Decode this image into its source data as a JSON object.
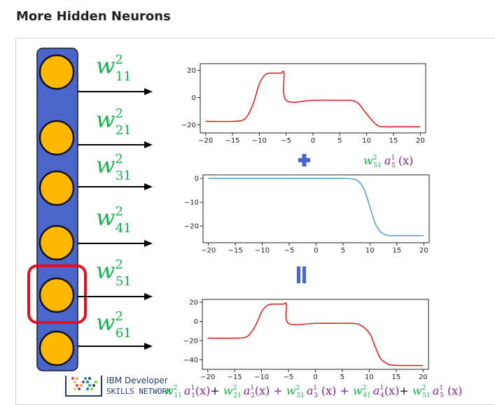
{
  "page_title": "More Hidden Neurons",
  "weights": [
    {
      "sub": "11",
      "sup": "2"
    },
    {
      "sub": "21",
      "sup": "2"
    },
    {
      "sub": "31",
      "sup": "2"
    },
    {
      "sub": "41",
      "sup": "2"
    },
    {
      "sub": "51",
      "sup": "2"
    },
    {
      "sub": "61",
      "sup": "2"
    }
  ],
  "highlighted_neuron": 5,
  "colors": {
    "layer": "#4a66c9",
    "neuron": "#ffb800",
    "highlight": "#e0101a",
    "weight": "#14b04c",
    "activation": "#7b2a8c",
    "red_curve": "#d62728",
    "blue_curve": "#5b9fc9",
    "op": "#4a66c9"
  },
  "operators": {
    "plus": "+",
    "equals": "="
  },
  "term_label": "w²₅₁ a¹₅ (x)",
  "formula": "w²₁₁ a¹₁(x)+ w²₂₁ a¹₂(x) + w²₃₁ a¹₃ (x) + w²₄₁ a¹₄(x)+ w²₅₁ a¹₅ (x)",
  "brand": {
    "line1": "IBM Developer",
    "line2": "SKILLS NETWORK"
  },
  "chart_data": [
    {
      "type": "line",
      "x_ticks": [
        "−20",
        "−15",
        "−10",
        "−5",
        "0",
        "5",
        "10",
        "15",
        "20"
      ],
      "y_ticks": [
        "20",
        "0",
        "−20"
      ],
      "xlim": [
        -21,
        21
      ],
      "ylim": [
        -26,
        25
      ],
      "series": [
        {
          "color": "#d62728",
          "x": [
            -20,
            -15,
            -13,
            -12,
            -11,
            -10,
            -9,
            -8,
            -6,
            -5.4,
            -5,
            0,
            5,
            8,
            10,
            12,
            14,
            16,
            20
          ],
          "y": [
            -17.5,
            -17.5,
            -16.5,
            -12,
            -3,
            10,
            16.5,
            18,
            18,
            18,
            -2,
            -2,
            -2,
            -3,
            -12,
            -20.5,
            -21.5,
            -21.5,
            -21.5
          ]
        }
      ]
    },
    {
      "type": "line",
      "x_ticks": [
        "−20",
        "−15",
        "−10",
        "−5",
        "0",
        "5",
        "10",
        "15",
        "20"
      ],
      "y_ticks": [
        "0",
        "−10",
        "−20"
      ],
      "xlim": [
        -21,
        21
      ],
      "ylim": [
        -27,
        1.5
      ],
      "series": [
        {
          "color": "#5b9fc9",
          "x": [
            -20,
            0,
            5,
            7,
            8,
            9,
            10,
            11,
            12,
            13,
            14,
            16,
            20
          ],
          "y": [
            0,
            0,
            0,
            -0.3,
            -1.5,
            -5,
            -12,
            -19,
            -22.5,
            -23.7,
            -24,
            -24,
            -24
          ]
        }
      ]
    },
    {
      "type": "line",
      "x_ticks": [
        "−20",
        "−15",
        "−10",
        "−5",
        "0",
        "5",
        "10",
        "15",
        "20"
      ],
      "y_ticks": [
        "20",
        "0",
        "−20",
        "−40"
      ],
      "xlim": [
        -21,
        21
      ],
      "ylim": [
        -50,
        23
      ],
      "series": [
        {
          "color": "#d62728",
          "x": [
            -20,
            -15,
            -13,
            -12,
            -11,
            -10,
            -9,
            -8,
            -6,
            -5.4,
            -5,
            0,
            5,
            8,
            10,
            11,
            12,
            13,
            14,
            16,
            20
          ],
          "y": [
            -17.5,
            -17.5,
            -16.5,
            -12,
            -3,
            10,
            16.5,
            18,
            18,
            18,
            -2,
            -2,
            -2,
            -3,
            -12,
            -25,
            -38,
            -43,
            -45.5,
            -46,
            -46
          ]
        }
      ]
    }
  ]
}
